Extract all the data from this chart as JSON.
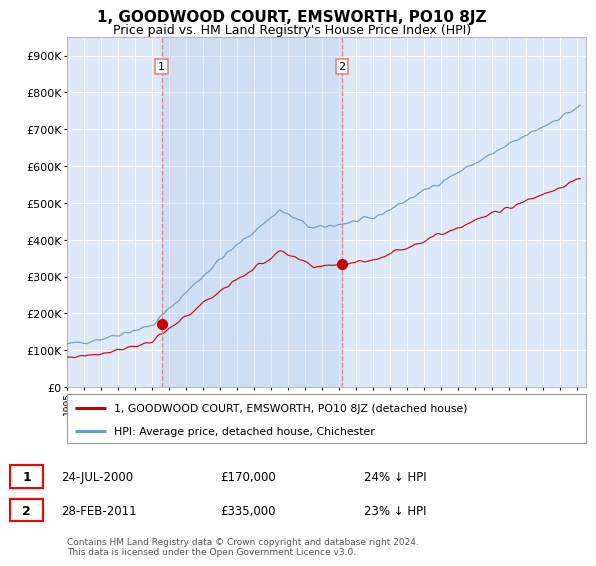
{
  "title": "1, GOODWOOD COURT, EMSWORTH, PO10 8JZ",
  "subtitle": "Price paid vs. HM Land Registry's House Price Index (HPI)",
  "red_label": "1, GOODWOOD COURT, EMSWORTH, PO10 8JZ (detached house)",
  "blue_label": "HPI: Average price, detached house, Chichester",
  "sale1_date": "24-JUL-2000",
  "sale1_price": 170000,
  "sale1_note": "24% ↓ HPI",
  "sale2_date": "28-FEB-2011",
  "sale2_price": 335000,
  "sale2_note": "23% ↓ HPI",
  "footer": "Contains HM Land Registry data © Crown copyright and database right 2024.\nThis data is licensed under the Open Government Licence v3.0.",
  "ylim": [
    0,
    950000
  ],
  "yticks": [
    0,
    100000,
    200000,
    300000,
    400000,
    500000,
    600000,
    700000,
    800000,
    900000
  ],
  "background_color": "#ffffff",
  "plot_bg_color": "#dde8f8",
  "shade_color": "#c8d8f0",
  "grid_color": "#ffffff",
  "red_color": "#cc0000",
  "blue_color": "#6699cc",
  "vline_color": "#dd8888"
}
